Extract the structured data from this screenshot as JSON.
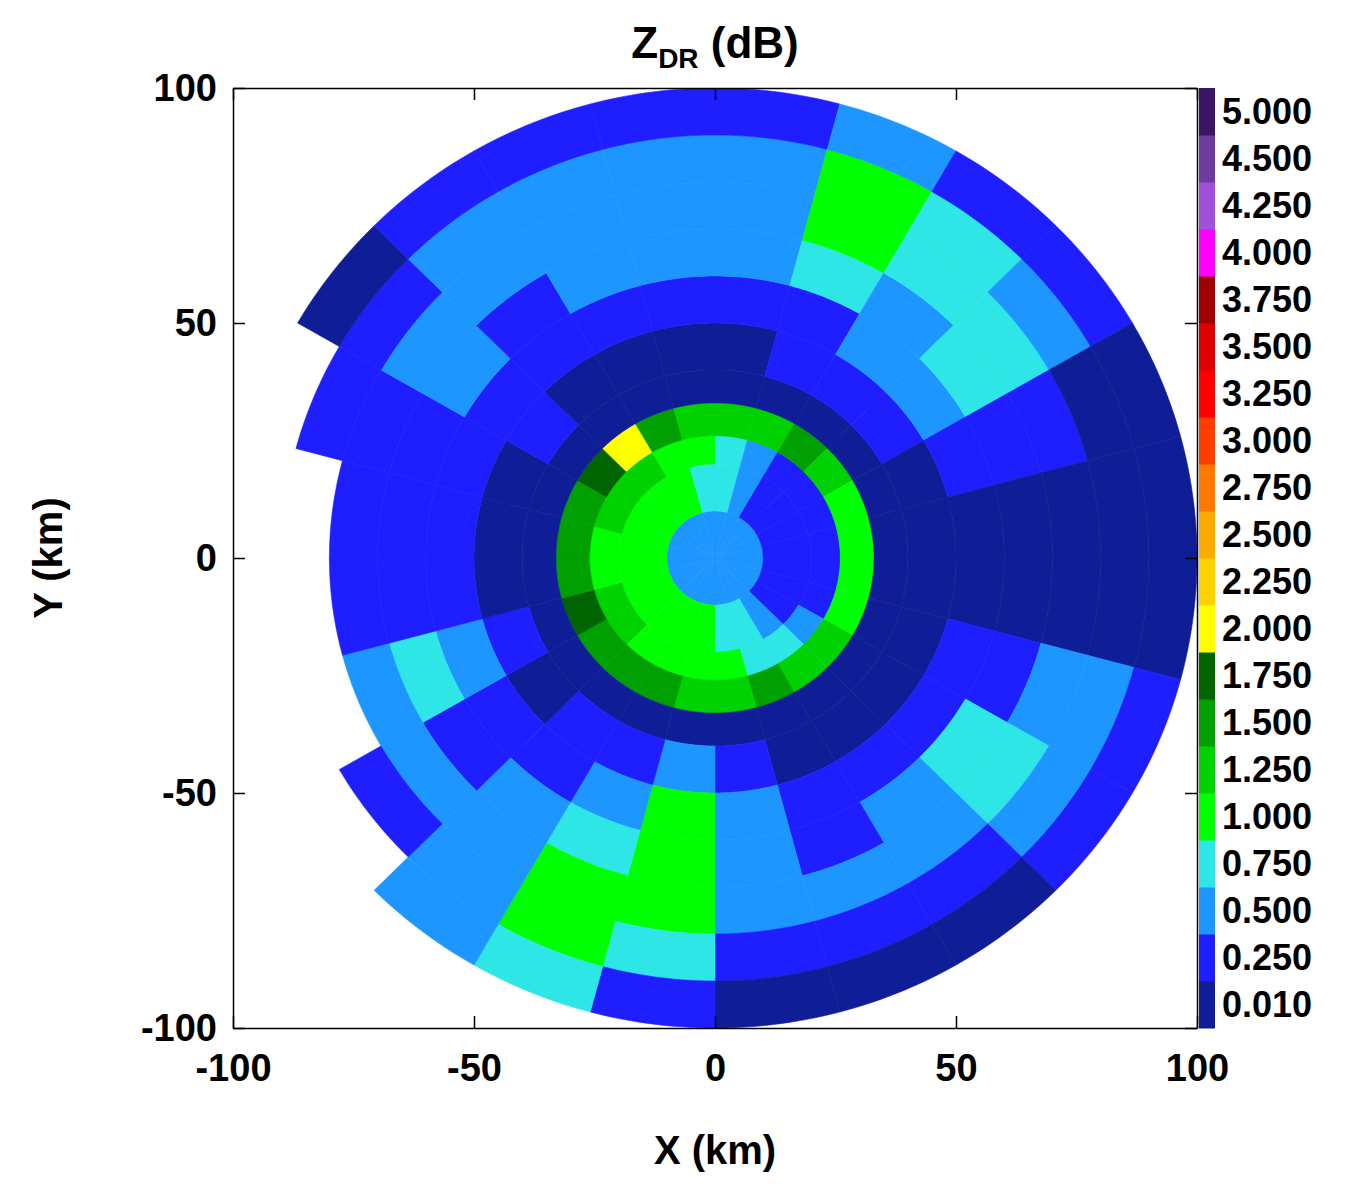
{
  "chart_data": {
    "type": "heatmap",
    "title": "ZDR (dB)",
    "x_label": "X (km)",
    "y_label": "Y (km)",
    "xlim": [
      -100,
      100
    ],
    "ylim": [
      -100,
      100
    ],
    "xticks": [
      -100,
      -50,
      0,
      50,
      100
    ],
    "yticks": [
      -100,
      -50,
      0,
      50,
      100
    ],
    "azimuth_edges": [
      0,
      15,
      30,
      45,
      60,
      75,
      90,
      105,
      120,
      135,
      150,
      165,
      180,
      195,
      210,
      225,
      240,
      255,
      270,
      285,
      300,
      315,
      330,
      345,
      360
    ],
    "range_edges": [
      0,
      10,
      20,
      26,
      33,
      40,
      50,
      60,
      70,
      80,
      90,
      100
    ],
    "cells": [
      [
        0.6,
        0.8,
        0.9,
        1.3,
        0.15,
        0.15,
        0.3,
        0.55,
        0.55,
        0.6,
        0.3
      ],
      [
        0.55,
        0.5,
        0.6,
        1.4,
        0.15,
        0.3,
        0.3,
        0.8,
        1.1,
        1.1,
        0.55
      ],
      [
        0.5,
        0.3,
        0.4,
        1.6,
        0.15,
        0.3,
        0.55,
        0.55,
        0.8,
        0.8,
        0.3
      ],
      [
        0.5,
        0.3,
        0.3,
        1.3,
        0.15,
        0.3,
        0.55,
        0.8,
        0.8,
        0.55,
        0.3
      ],
      [
        0.5,
        0.3,
        0.3,
        1.2,
        0.15,
        0.15,
        0.3,
        0.3,
        0.3,
        0.15,
        0.15
      ],
      [
        0.5,
        0.3,
        0.3,
        1.1,
        0.15,
        0.15,
        0.15,
        0.15,
        0.15,
        0.15,
        0.15
      ],
      [
        0.5,
        0.3,
        0.3,
        1.1,
        0.15,
        0.15,
        0.15,
        0.15,
        0.15,
        0.15,
        0.15
      ],
      [
        0.5,
        0.3,
        0.3,
        1.2,
        0.15,
        0.15,
        0.3,
        0.3,
        0.55,
        0.55,
        0.3
      ],
      [
        0.5,
        0.3,
        0.55,
        1.3,
        0.15,
        0.15,
        0.3,
        0.8,
        0.8,
        0.55,
        0.3
      ],
      [
        0.55,
        0.55,
        0.8,
        1.4,
        0.15,
        0.15,
        0.3,
        0.55,
        0.55,
        0.3,
        0.15
      ],
      [
        0.6,
        0.8,
        0.9,
        1.5,
        0.15,
        0.15,
        0.3,
        0.3,
        0.55,
        0.3,
        0.15
      ],
      [
        0.6,
        0.9,
        1.0,
        1.4,
        0.15,
        0.3,
        0.55,
        0.55,
        0.55,
        0.3,
        0.15
      ],
      [
        0.6,
        1.0,
        1.1,
        1.4,
        0.15,
        0.55,
        1.1,
        1.1,
        1.1,
        0.8,
        0.3
      ],
      [
        0.6,
        1.1,
        1.1,
        1.5,
        0.15,
        0.3,
        0.55,
        0.8,
        1.0,
        1.1,
        0.8
      ],
      [
        0.6,
        1.1,
        1.2,
        1.7,
        0.15,
        0.3,
        0.3,
        0.55,
        0.55,
        0.55,
        0.55
      ],
      [
        0.6,
        1.1,
        1.3,
        1.6,
        0.15,
        0.15,
        0.3,
        0.3,
        0.55,
        0.3,
        null
      ],
      [
        0.7,
        1.1,
        1.3,
        1.8,
        0.15,
        0.3,
        0.55,
        0.8,
        0.55,
        null,
        null
      ],
      [
        0.7,
        1.1,
        1.2,
        1.5,
        0.15,
        0.15,
        0.3,
        0.3,
        0.3,
        null,
        null
      ],
      [
        0.7,
        1.1,
        1.2,
        1.6,
        0.15,
        0.15,
        0.3,
        0.3,
        0.3,
        null,
        null
      ],
      [
        0.7,
        1.1,
        1.3,
        1.5,
        0.15,
        0.15,
        0.3,
        0.3,
        0.3,
        0.3,
        null
      ],
      [
        0.7,
        1.1,
        1.3,
        1.8,
        0.15,
        0.3,
        0.3,
        0.55,
        0.55,
        0.3,
        0.15
      ],
      [
        0.7,
        1.1,
        1.3,
        2.1,
        0.15,
        0.15,
        0.3,
        0.3,
        0.55,
        0.55,
        0.3
      ],
      [
        0.7,
        1.0,
        1.2,
        1.5,
        0.15,
        0.15,
        0.3,
        0.55,
        0.55,
        0.55,
        0.3
      ],
      [
        0.6,
        0.9,
        1.0,
        1.4,
        0.15,
        0.15,
        0.3,
        0.55,
        0.55,
        0.55,
        0.3
      ]
    ],
    "colorbar": {
      "ticks": [
        {
          "value": 0.01,
          "label": "0.010"
        },
        {
          "value": 0.25,
          "label": "0.250"
        },
        {
          "value": 0.5,
          "label": "0.500"
        },
        {
          "value": 0.75,
          "label": "0.750"
        },
        {
          "value": 1.0,
          "label": "1.000"
        },
        {
          "value": 1.25,
          "label": "1.250"
        },
        {
          "value": 1.5,
          "label": "1.500"
        },
        {
          "value": 1.75,
          "label": "1.750"
        },
        {
          "value": 2.0,
          "label": "2.000"
        },
        {
          "value": 2.25,
          "label": "2.250"
        },
        {
          "value": 2.5,
          "label": "2.500"
        },
        {
          "value": 2.75,
          "label": "2.750"
        },
        {
          "value": 3.0,
          "label": "3.000"
        },
        {
          "value": 3.25,
          "label": "3.250"
        },
        {
          "value": 3.5,
          "label": "3.500"
        },
        {
          "value": 3.75,
          "label": "3.750"
        },
        {
          "value": 4.0,
          "label": "4.000"
        },
        {
          "value": 4.25,
          "label": "4.250"
        },
        {
          "value": 4.5,
          "label": "4.500"
        },
        {
          "value": 5.0,
          "label": "5.000"
        }
      ],
      "colors": [
        "#0f1e96",
        "#1e1eff",
        "#1e96ff",
        "#2ee6e6",
        "#00ff00",
        "#00d200",
        "#00a000",
        "#006400",
        "#ffff00",
        "#ffd200",
        "#ffaa00",
        "#ff7800",
        "#ff3c00",
        "#ff0000",
        "#dc0000",
        "#a00000",
        "#ff00ff",
        "#a050dc",
        "#6e3ca0",
        "#3c1464"
      ]
    }
  }
}
